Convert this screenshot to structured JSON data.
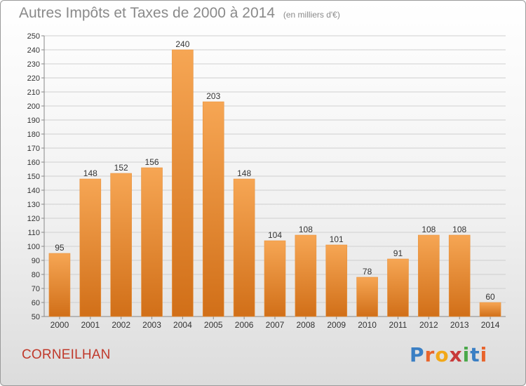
{
  "header": {
    "title": "Autres Impôts et Taxes de 2000 à 2014",
    "unit": "(en milliers d'€)"
  },
  "footer": {
    "location": "CORNEILHAN",
    "brand": "Proxiti"
  },
  "colors": {
    "bar_top": "#f6a654",
    "bar_bottom": "#d16f18",
    "grid": "#cfcfcf",
    "location": "#c0392b"
  },
  "chart_data": {
    "type": "bar",
    "title": "Autres Impôts et Taxes de 2000 à 2014",
    "subtitle": "(en milliers d'€)",
    "xlabel": "",
    "ylabel": "",
    "categories": [
      "2000",
      "2001",
      "2002",
      "2003",
      "2004",
      "2005",
      "2006",
      "2007",
      "2008",
      "2009",
      "2010",
      "2011",
      "2012",
      "2013",
      "2014"
    ],
    "values": [
      95,
      148,
      152,
      156,
      240,
      203,
      148,
      104,
      108,
      101,
      78,
      91,
      108,
      108,
      60
    ],
    "ylim": [
      50,
      250
    ],
    "yticks": [
      50,
      60,
      70,
      80,
      90,
      100,
      110,
      120,
      130,
      140,
      150,
      160,
      170,
      180,
      190,
      200,
      210,
      220,
      230,
      240,
      250
    ],
    "grid": true,
    "legend": "none"
  }
}
